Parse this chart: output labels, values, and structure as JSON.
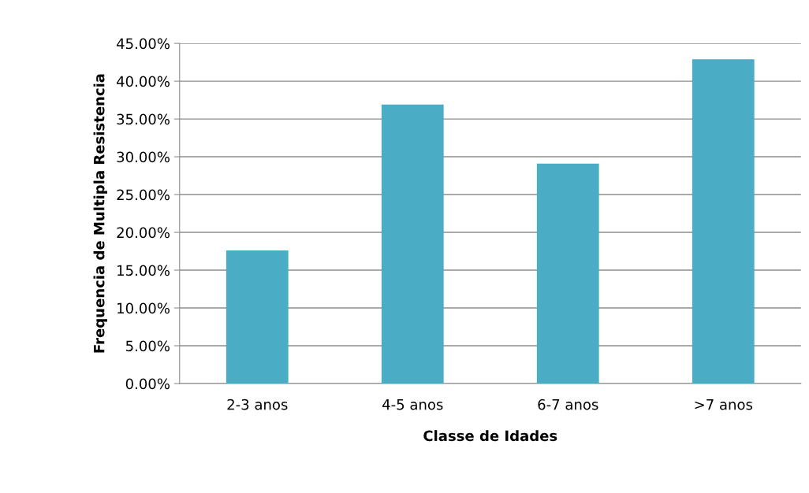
{
  "chart_data": {
    "type": "bar",
    "xlabel": "Classe de Idades",
    "ylabel": "Frequencia de Multipla Resistencia",
    "categories": [
      "2-3 anos",
      "4-5 anos",
      "6-7 anos",
      ">7 anos"
    ],
    "values": [
      17.6,
      36.9,
      29.1,
      42.9
    ],
    "color": "#4bacc6",
    "ylim": [
      0,
      45
    ],
    "yticks": [
      {
        "value": 0,
        "label": "0.00%"
      },
      {
        "value": 5,
        "label": "5.00%"
      },
      {
        "value": 10,
        "label": "10.00%"
      },
      {
        "value": 15,
        "label": "15.00%"
      },
      {
        "value": 20,
        "label": "20.00%"
      },
      {
        "value": 25,
        "label": "25.00%"
      },
      {
        "value": 30,
        "label": "30.00%"
      },
      {
        "value": 35,
        "label": "35.00%"
      },
      {
        "value": 40,
        "label": "40.00%"
      },
      {
        "value": 45,
        "label": "45.00%"
      }
    ],
    "grid": "y"
  }
}
